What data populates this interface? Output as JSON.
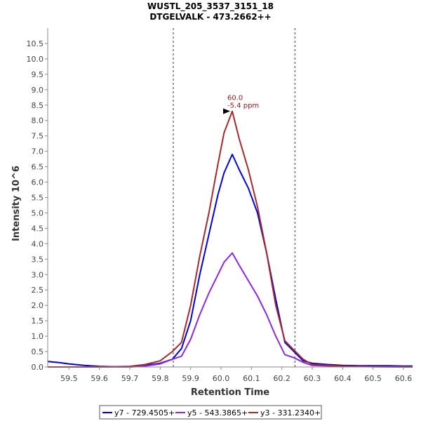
{
  "chart_data": {
    "type": "line",
    "title": "WUSTL_205_3537_3151_18",
    "subtitle": "DTGELVALK - 473.2662++",
    "xlabel": "Retention Time",
    "ylabel": "Intensity 10^6",
    "xlim": [
      59.43,
      60.63
    ],
    "ylim": [
      0,
      11.0
    ],
    "x_ticks": [
      "59.5",
      "59.6",
      "59.7",
      "59.8",
      "59.9",
      "60.0",
      "60.1",
      "60.2",
      "60.3",
      "60.4",
      "60.5",
      "60.6"
    ],
    "y_ticks": [
      "0.0",
      "0.5",
      "1.0",
      "1.5",
      "2.0",
      "2.5",
      "3.0",
      "3.5",
      "4.0",
      "4.5",
      "5.0",
      "5.5",
      "6.0",
      "6.5",
      "7.0",
      "7.5",
      "8.0",
      "8.5",
      "9.0",
      "9.5",
      "10.0",
      "10.5"
    ],
    "vlines": [
      59.843,
      60.243
    ],
    "grid": false,
    "legend_position": "bottom",
    "annotation": {
      "x": 60.037,
      "y": 8.3,
      "lines": [
        "60.0",
        "-5.4 ppm"
      ],
      "color": "#8b1a1a"
    },
    "series": [
      {
        "name": "y7 - 729.4505+",
        "color": "#0000dd",
        "x": [
          59.43,
          59.47,
          59.5,
          59.55,
          59.6,
          59.65,
          59.7,
          59.75,
          59.8,
          59.84,
          59.87,
          59.9,
          59.93,
          59.96,
          59.99,
          60.01,
          60.037,
          60.06,
          60.09,
          60.12,
          60.15,
          60.18,
          60.21,
          60.24,
          60.27,
          60.3,
          60.35,
          60.4,
          60.45,
          60.5,
          60.55,
          60.6,
          60.63
        ],
        "values": [
          0.18,
          0.14,
          0.1,
          0.05,
          0.02,
          0.01,
          0.01,
          0.05,
          0.12,
          0.25,
          0.6,
          1.5,
          3.0,
          4.3,
          5.6,
          6.3,
          6.9,
          6.4,
          5.8,
          5.0,
          3.7,
          2.2,
          0.8,
          0.5,
          0.2,
          0.12,
          0.08,
          0.05,
          0.04,
          0.04,
          0.04,
          0.03,
          0.03
        ]
      },
      {
        "name": "y5 - 543.3865+",
        "color": "#8a2be2",
        "x": [
          59.43,
          59.5,
          59.6,
          59.7,
          59.75,
          59.8,
          59.84,
          59.87,
          59.9,
          59.93,
          59.96,
          59.99,
          60.01,
          60.037,
          60.06,
          60.09,
          60.12,
          60.15,
          60.18,
          60.21,
          60.24,
          60.27,
          60.3,
          60.4,
          60.5,
          60.63
        ],
        "values": [
          0.0,
          0.0,
          0.0,
          0.0,
          0.03,
          0.1,
          0.25,
          0.35,
          0.9,
          1.7,
          2.4,
          3.0,
          3.4,
          3.7,
          3.3,
          2.8,
          2.3,
          1.7,
          1.0,
          0.4,
          0.3,
          0.15,
          0.05,
          0.02,
          0.01,
          0.0
        ]
      },
      {
        "name": "y3 - 331.2340+",
        "color": "#a52a2a",
        "x": [
          59.43,
          59.5,
          59.6,
          59.7,
          59.75,
          59.8,
          59.84,
          59.87,
          59.9,
          59.93,
          59.96,
          59.99,
          60.01,
          60.037,
          60.06,
          60.09,
          60.12,
          60.15,
          60.18,
          60.21,
          60.24,
          60.27,
          60.3,
          60.4,
          60.5,
          60.63
        ],
        "values": [
          0.0,
          0.0,
          0.0,
          0.02,
          0.08,
          0.2,
          0.5,
          0.8,
          2.0,
          3.6,
          5.0,
          6.6,
          7.6,
          8.3,
          7.4,
          6.4,
          5.2,
          3.7,
          2.0,
          0.85,
          0.55,
          0.25,
          0.08,
          0.03,
          0.01,
          0.0
        ]
      }
    ]
  }
}
